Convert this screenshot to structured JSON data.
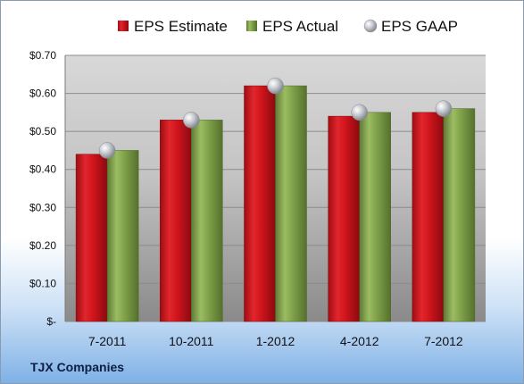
{
  "company": "TJX Companies",
  "chart_data": {
    "type": "bar",
    "categories": [
      "7-2011",
      "10-2011",
      "1-2012",
      "4-2012",
      "7-2012"
    ],
    "series": [
      {
        "name": "EPS Estimate",
        "type": "bar",
        "color": "#d0141c",
        "values": [
          0.44,
          0.53,
          0.62,
          0.54,
          0.55
        ]
      },
      {
        "name": "EPS Actual",
        "type": "bar",
        "color": "#7fa24a",
        "values": [
          0.45,
          0.53,
          0.62,
          0.55,
          0.56
        ]
      },
      {
        "name": "EPS GAAP",
        "type": "scatter",
        "color": "#b8bcc2",
        "values": [
          0.45,
          0.53,
          0.62,
          0.55,
          0.56
        ]
      }
    ],
    "ylim": [
      0,
      0.7
    ],
    "yticks": [
      0,
      0.1,
      0.2,
      0.3,
      0.4,
      0.5,
      0.6,
      0.7
    ],
    "ytick_labels": [
      "$-",
      "$0.10",
      "$0.20",
      "$0.30",
      "$0.40",
      "$0.50",
      "$0.60",
      "$0.70"
    ],
    "legend_position": "top",
    "grid": true
  }
}
